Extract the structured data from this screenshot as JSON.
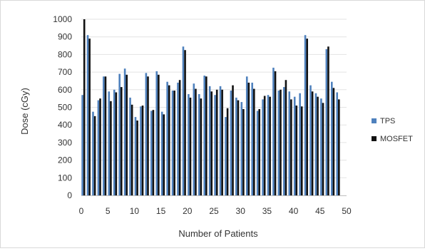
{
  "chart_data": {
    "type": "bar",
    "xlabel": "Number of Patients",
    "ylabel": "Dose (cGy)",
    "ylim": [
      0,
      1000
    ],
    "y_ticks": [
      "0",
      "100",
      "200",
      "300",
      "400",
      "500",
      "600",
      "700",
      "800",
      "900",
      "1000"
    ],
    "xlim": [
      0,
      50
    ],
    "x_ticks": [
      "0",
      "5",
      "10",
      "15",
      "20",
      "25",
      "30",
      "35",
      "40",
      "45",
      "50"
    ],
    "grid": "horizontal",
    "legend_position": "right",
    "x": [
      0,
      1,
      2,
      3,
      4,
      5,
      6,
      7,
      8,
      9,
      10,
      11,
      12,
      13,
      14,
      15,
      16,
      17,
      18,
      19,
      20,
      21,
      22,
      23,
      24,
      25,
      26,
      27,
      28,
      29,
      30,
      31,
      32,
      33,
      34,
      35,
      36,
      37,
      38,
      39,
      40,
      41,
      42,
      43,
      44,
      45,
      46,
      47,
      48,
      49
    ],
    "series": [
      {
        "name": "TPS",
        "color": "#4f81bd",
        "values": [
          570,
          910,
          475,
          540,
          675,
          590,
          600,
          690,
          720,
          555,
          445,
          505,
          695,
          480,
          705,
          475,
          645,
          595,
          640,
          845,
          575,
          635,
          575,
          680,
          620,
          570,
          620,
          445,
          595,
          555,
          530,
          675,
          640,
          480,
          545,
          570,
          725,
          595,
          615,
          590,
          560,
          580,
          910,
          625,
          580,
          550,
          830,
          645,
          585,
          0
        ]
      },
      {
        "name": "MOSFET",
        "color": "#111111",
        "values": [
          1000,
          890,
          450,
          550,
          675,
          535,
          585,
          615,
          685,
          515,
          425,
          510,
          675,
          485,
          685,
          460,
          625,
          595,
          655,
          825,
          555,
          605,
          550,
          675,
          590,
          600,
          600,
          495,
          625,
          540,
          490,
          640,
          605,
          490,
          565,
          560,
          705,
          600,
          655,
          545,
          510,
          505,
          890,
          590,
          560,
          525,
          845,
          610,
          545,
          0
        ]
      }
    ]
  }
}
